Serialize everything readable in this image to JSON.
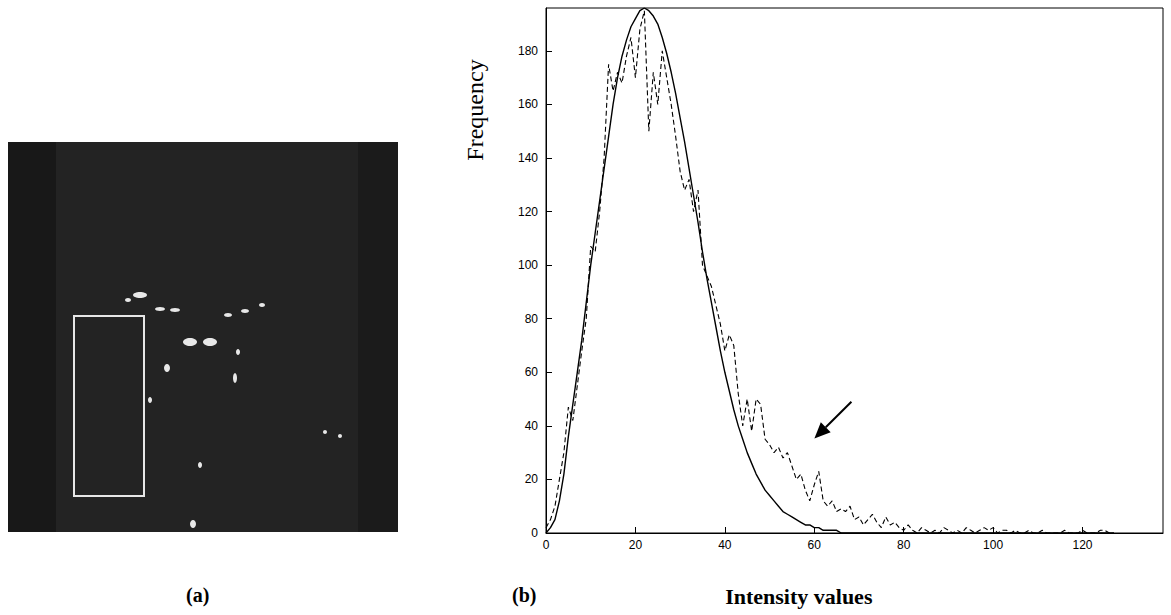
{
  "image_panel": {
    "label": "(a)"
  },
  "chart_data": {
    "type": "line",
    "panel_label": "(b)",
    "xlabel": "Intensity values",
    "ylabel": "Frequency",
    "x": [
      0,
      1,
      2,
      3,
      4,
      5,
      6,
      7,
      8,
      9,
      10,
      11,
      12,
      13,
      14,
      15,
      16,
      17,
      18,
      19,
      20,
      21,
      22,
      23,
      24,
      25,
      26,
      27,
      28,
      29,
      30,
      31,
      32,
      33,
      34,
      35,
      36,
      37,
      38,
      39,
      40,
      41,
      42,
      43,
      44,
      45,
      46,
      47,
      48,
      49,
      50,
      51,
      52,
      53,
      54,
      55,
      56,
      57,
      58,
      59,
      60,
      61,
      62,
      63,
      64,
      65,
      66,
      67,
      68,
      69,
      70,
      71,
      72,
      73,
      74,
      75,
      76,
      77,
      78,
      79,
      80,
      81,
      82,
      83,
      84,
      85,
      86,
      87,
      88,
      89,
      90,
      91,
      92,
      93,
      94,
      95,
      96,
      97,
      98,
      99,
      100,
      101,
      102,
      103,
      104,
      105,
      106,
      107,
      108,
      109,
      110,
      111,
      112,
      113,
      114,
      115,
      116,
      117,
      118,
      119,
      120,
      121,
      122,
      123,
      124,
      125,
      126,
      127
    ],
    "series": [
      {
        "color": "#000000",
        "line_style": "dashed",
        "values": [
          2,
          5,
          10,
          20,
          30,
          47,
          42,
          55,
          68,
          80,
          107,
          105,
          120,
          140,
          175,
          165,
          172,
          168,
          178,
          185,
          170,
          188,
          195,
          150,
          172,
          160,
          180,
          170,
          160,
          148,
          135,
          128,
          132,
          120,
          128,
          100,
          96,
          92,
          85,
          78,
          68,
          74,
          70,
          52,
          40,
          50,
          38,
          50,
          48,
          35,
          33,
          30,
          32,
          28,
          30,
          25,
          20,
          22,
          16,
          12,
          18,
          23,
          12,
          10,
          12,
          8,
          9,
          8,
          10,
          5,
          6,
          3,
          5,
          7,
          4,
          2,
          6,
          3,
          4,
          2,
          1,
          3,
          1,
          0,
          2,
          1,
          0,
          1,
          0,
          2,
          1,
          0,
          1,
          0,
          2,
          1,
          0,
          1,
          2,
          1,
          2,
          0,
          1,
          1,
          0,
          1,
          0,
          0,
          1,
          0,
          0,
          1,
          0,
          0,
          0,
          0,
          1,
          0,
          0,
          0,
          1,
          0,
          0,
          0,
          1,
          1,
          0,
          0
        ]
      },
      {
        "color": "#000000",
        "line_style": "solid",
        "values": [
          0,
          2,
          5,
          12,
          22,
          36,
          48,
          60,
          72,
          86,
          100,
          112,
          124,
          136,
          148,
          160,
          170,
          178,
          184,
          189,
          192,
          195,
          196,
          195,
          193,
          190,
          185,
          179,
          172,
          164,
          155,
          146,
          136,
          126,
          116,
          105,
          95,
          86,
          77,
          68,
          60,
          53,
          46,
          40,
          35,
          30,
          26,
          22,
          19,
          16,
          14,
          12,
          10,
          8,
          7,
          6,
          5,
          4,
          3,
          3,
          2,
          2,
          1,
          1,
          1,
          1,
          0,
          0,
          0,
          0,
          0,
          0,
          0,
          0,
          0,
          0,
          0,
          0,
          0,
          0,
          0,
          0,
          0,
          0,
          0,
          0,
          0,
          0,
          0,
          0,
          0,
          0,
          0,
          0,
          0,
          0,
          0,
          0,
          0,
          0,
          0,
          0,
          0,
          0,
          0,
          0,
          0,
          0,
          0,
          0,
          0,
          0,
          0,
          0,
          0,
          0,
          0,
          0,
          0,
          0,
          0,
          0,
          0,
          0,
          0,
          0,
          0,
          0
        ]
      }
    ],
    "xlim": [
      0,
      138
    ],
    "xticks": [
      0,
      20,
      40,
      60,
      80,
      100,
      120
    ],
    "ylim": [
      0,
      196
    ],
    "yticks": [
      0,
      20,
      40,
      60,
      80,
      100,
      120,
      140,
      160,
      180
    ],
    "grid": false
  }
}
